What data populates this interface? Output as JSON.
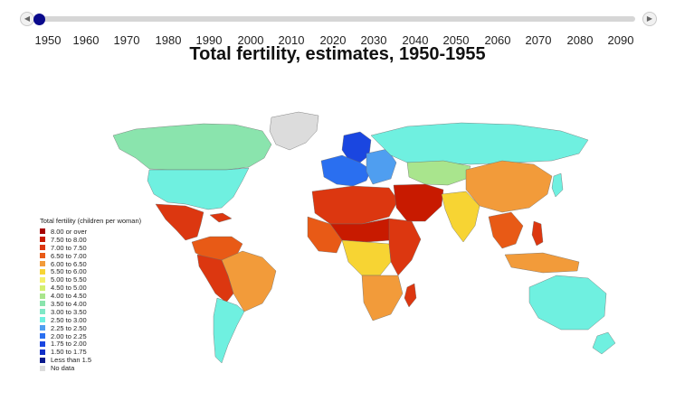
{
  "timeline": {
    "prev_icon": "◀",
    "next_icon": "▶",
    "selected_year": 1950,
    "years": [
      "1950",
      "1960",
      "1970",
      "1980",
      "1990",
      "2000",
      "2010",
      "2020",
      "2030",
      "2040",
      "2050",
      "2060",
      "2070",
      "2080",
      "2090"
    ]
  },
  "title": "Total fertility, estimates, 1950-1955",
  "legend": {
    "title": "Total fertility (children per woman)",
    "items": [
      {
        "label": "8.00 or over",
        "color": "#a50000"
      },
      {
        "label": "7.50 to 8.00",
        "color": "#c81a00"
      },
      {
        "label": "7.00 to 7.50",
        "color": "#dc3710"
      },
      {
        "label": "6.50 to 7.00",
        "color": "#e85a16"
      },
      {
        "label": "6.00 to 6.50",
        "color": "#f29b3a"
      },
      {
        "label": "5.50 to 6.00",
        "color": "#f7d433"
      },
      {
        "label": "5.00 to 5.50",
        "color": "#f4f06a"
      },
      {
        "label": "4.50 to 5.00",
        "color": "#d3ef6f"
      },
      {
        "label": "4.00 to 4.50",
        "color": "#a9e58d"
      },
      {
        "label": "3.50 to 4.00",
        "color": "#8ae4ad"
      },
      {
        "label": "3.00 to 3.50",
        "color": "#7fe8c6"
      },
      {
        "label": "2.50 to 3.00",
        "color": "#6ff0e0"
      },
      {
        "label": "2.25 to 2.50",
        "color": "#4f9ef0"
      },
      {
        "label": "2.00 to 2.25",
        "color": "#2a6ff0"
      },
      {
        "label": "1.75 to 2.00",
        "color": "#1a46e0"
      },
      {
        "label": "1.50 to 1.75",
        "color": "#1030c8"
      },
      {
        "label": "Less than 1.5",
        "color": "#0a1a8c"
      },
      {
        "label": "No data",
        "color": "#dcdcdc"
      }
    ]
  },
  "map_colors": {
    "no_data": "#dcdcdc",
    "north_america": "#6ff0e0",
    "canada": "#8ae4ad",
    "mexico_central_america": "#dc3710",
    "south_america_north": "#e85a16",
    "brazil": "#f29b3a",
    "andes": "#dc3710",
    "south_cone": "#6ff0e0",
    "northern_europe": "#1a46e0",
    "western_europe": "#2a6ff0",
    "eastern_europe": "#4f9ef0",
    "russia": "#6ff0e0",
    "north_africa": "#dc3710",
    "sahel": "#c81a00",
    "west_africa": "#e85a16",
    "central_africa": "#f7d433",
    "east_africa": "#dc3710",
    "southern_africa": "#f29b3a",
    "middle_east": "#c81a00",
    "central_asia": "#a9e58d",
    "china": "#f29b3a",
    "india": "#f7d433",
    "southeast_asia": "#e85a16",
    "japan": "#6ff0e0",
    "indonesia": "#f29b3a",
    "philippines": "#dc3710",
    "australia": "#6ff0e0",
    "new_zealand": "#6ff0e0"
  }
}
